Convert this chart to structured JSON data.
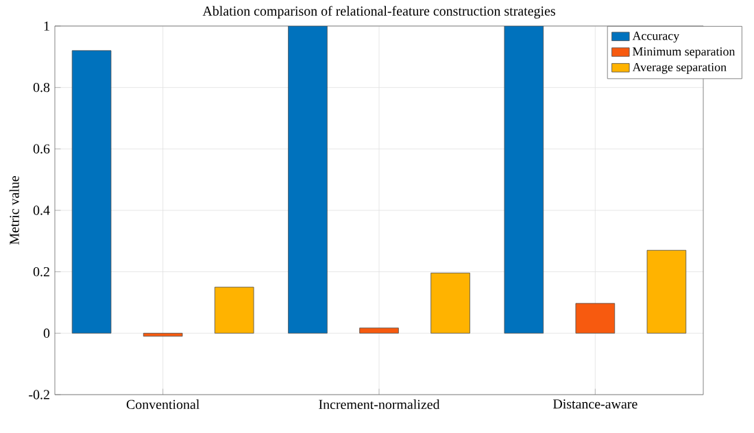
{
  "chart_data": {
    "type": "bar",
    "title": "Ablation comparison of relational-feature construction strategies",
    "ylabel": "Metric value",
    "categories": [
      "Conventional",
      "Increment-normalized",
      "Distance-aware"
    ],
    "series": [
      {
        "name": "Accuracy",
        "color": "#0072bd",
        "values": [
          0.92,
          1.0,
          1.0
        ]
      },
      {
        "name": "Minimum separation",
        "color": "#f75a0f",
        "values": [
          -0.01,
          0.017,
          0.097
        ]
      },
      {
        "name": "Average separation",
        "color": "#ffb300",
        "values": [
          0.15,
          0.196,
          0.27
        ]
      }
    ],
    "ylim": [
      -0.2,
      1
    ],
    "yticks": [
      -0.2,
      0,
      0.2,
      0.4,
      0.6,
      0.8,
      1
    ],
    "grid": true,
    "legend": "top right"
  }
}
